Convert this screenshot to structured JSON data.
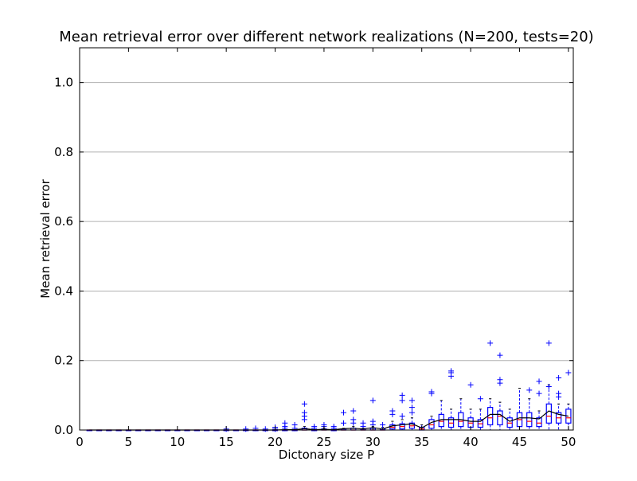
{
  "chart_data": {
    "type": "box",
    "title": "Mean retrieval error over different network realizations (N=200, tests=20)",
    "xlabel": "Dictonary size P",
    "ylabel": "Mean retrieval error",
    "xlim": [
      0,
      50.5
    ],
    "ylim": [
      0,
      1.1
    ],
    "xticks": [
      0,
      5,
      10,
      15,
      20,
      25,
      30,
      35,
      40,
      45,
      50
    ],
    "yticks": [
      0.0,
      0.2,
      0.4,
      0.6,
      0.8,
      1.0
    ],
    "xtick_labels": [
      "0",
      "5",
      "10",
      "15",
      "20",
      "25",
      "30",
      "35",
      "40",
      "45",
      "50"
    ],
    "ytick_labels": [
      "0.0",
      "0.2",
      "0.4",
      "0.6",
      "0.8",
      "1.0"
    ],
    "grid": "horizontal",
    "colors": {
      "box": "#0000ff",
      "median": "#ff0000",
      "mean_line": "#000000",
      "outlier": "#0000ff",
      "grid": "#b0b0b0"
    },
    "boxes": [
      {
        "x": 1,
        "q1": 0,
        "median": 0,
        "q3": 0,
        "whisker_low": 0,
        "whisker_high": 0,
        "outliers": []
      },
      {
        "x": 2,
        "q1": 0,
        "median": 0,
        "q3": 0,
        "whisker_low": 0,
        "whisker_high": 0,
        "outliers": []
      },
      {
        "x": 3,
        "q1": 0,
        "median": 0,
        "q3": 0,
        "whisker_low": 0,
        "whisker_high": 0,
        "outliers": []
      },
      {
        "x": 4,
        "q1": 0,
        "median": 0,
        "q3": 0,
        "whisker_low": 0,
        "whisker_high": 0,
        "outliers": []
      },
      {
        "x": 5,
        "q1": 0,
        "median": 0,
        "q3": 0,
        "whisker_low": 0,
        "whisker_high": 0,
        "outliers": []
      },
      {
        "x": 6,
        "q1": 0,
        "median": 0,
        "q3": 0,
        "whisker_low": 0,
        "whisker_high": 0,
        "outliers": []
      },
      {
        "x": 7,
        "q1": 0,
        "median": 0,
        "q3": 0,
        "whisker_low": 0,
        "whisker_high": 0,
        "outliers": []
      },
      {
        "x": 8,
        "q1": 0,
        "median": 0,
        "q3": 0,
        "whisker_low": 0,
        "whisker_high": 0,
        "outliers": []
      },
      {
        "x": 9,
        "q1": 0,
        "median": 0,
        "q3": 0,
        "whisker_low": 0,
        "whisker_high": 0,
        "outliers": []
      },
      {
        "x": 10,
        "q1": 0,
        "median": 0,
        "q3": 0,
        "whisker_low": 0,
        "whisker_high": 0,
        "outliers": []
      },
      {
        "x": 11,
        "q1": 0,
        "median": 0,
        "q3": 0,
        "whisker_low": 0,
        "whisker_high": 0,
        "outliers": []
      },
      {
        "x": 12,
        "q1": 0,
        "median": 0,
        "q3": 0,
        "whisker_low": 0,
        "whisker_high": 0,
        "outliers": []
      },
      {
        "x": 13,
        "q1": 0,
        "median": 0,
        "q3": 0,
        "whisker_low": 0,
        "whisker_high": 0,
        "outliers": []
      },
      {
        "x": 14,
        "q1": 0,
        "median": 0,
        "q3": 0,
        "whisker_low": 0,
        "whisker_high": 0,
        "outliers": []
      },
      {
        "x": 15,
        "q1": 0,
        "median": 0,
        "q3": 0,
        "whisker_low": 0,
        "whisker_high": 0,
        "outliers": [
          0.003
        ]
      },
      {
        "x": 16,
        "q1": 0,
        "median": 0,
        "q3": 0,
        "whisker_low": 0,
        "whisker_high": 0,
        "outliers": []
      },
      {
        "x": 17,
        "q1": 0,
        "median": 0,
        "q3": 0,
        "whisker_low": 0,
        "whisker_high": 0,
        "outliers": [
          0.003
        ]
      },
      {
        "x": 18,
        "q1": 0,
        "median": 0,
        "q3": 0,
        "whisker_low": 0,
        "whisker_high": 0,
        "outliers": [
          0.005
        ]
      },
      {
        "x": 19,
        "q1": 0,
        "median": 0,
        "q3": 0,
        "whisker_low": 0,
        "whisker_high": 0,
        "outliers": [
          0.003
        ]
      },
      {
        "x": 20,
        "q1": 0,
        "median": 0,
        "q3": 0,
        "whisker_low": 0,
        "whisker_high": 0,
        "outliers": [
          0.003,
          0.008
        ]
      },
      {
        "x": 21,
        "q1": 0,
        "median": 0,
        "q3": 0,
        "whisker_low": 0,
        "whisker_high": 0,
        "outliers": [
          0.005,
          0.01,
          0.02
        ]
      },
      {
        "x": 22,
        "q1": 0,
        "median": 0,
        "q3": 0,
        "whisker_low": 0,
        "whisker_high": 0,
        "outliers": [
          0.005,
          0.015
        ]
      },
      {
        "x": 23,
        "q1": 0,
        "median": 0,
        "q3": 0.005,
        "whisker_low": 0,
        "whisker_high": 0.01,
        "outliers": [
          0.03,
          0.04,
          0.05,
          0.075
        ]
      },
      {
        "x": 24,
        "q1": 0,
        "median": 0,
        "q3": 0,
        "whisker_low": 0,
        "whisker_high": 0,
        "outliers": [
          0.005,
          0.01
        ]
      },
      {
        "x": 25,
        "q1": 0,
        "median": 0,
        "q3": 0.003,
        "whisker_low": 0,
        "whisker_high": 0.005,
        "outliers": [
          0.01,
          0.015
        ]
      },
      {
        "x": 26,
        "q1": 0,
        "median": 0,
        "q3": 0,
        "whisker_low": 0,
        "whisker_high": 0,
        "outliers": [
          0.005,
          0.01
        ]
      },
      {
        "x": 27,
        "q1": 0,
        "median": 0,
        "q3": 0.003,
        "whisker_low": 0,
        "whisker_high": 0.005,
        "outliers": [
          0.02,
          0.05
        ]
      },
      {
        "x": 28,
        "q1": 0,
        "median": 0,
        "q3": 0.005,
        "whisker_low": 0,
        "whisker_high": 0.01,
        "outliers": [
          0.02,
          0.03,
          0.055
        ]
      },
      {
        "x": 29,
        "q1": 0,
        "median": 0,
        "q3": 0.003,
        "whisker_low": 0,
        "whisker_high": 0.005,
        "outliers": [
          0.01,
          0.02
        ]
      },
      {
        "x": 30,
        "q1": 0,
        "median": 0,
        "q3": 0.005,
        "whisker_low": 0,
        "whisker_high": 0.01,
        "outliers": [
          0.015,
          0.025,
          0.085
        ]
      },
      {
        "x": 31,
        "q1": 0,
        "median": 0,
        "q3": 0.003,
        "whisker_low": 0,
        "whisker_high": 0.008,
        "outliers": [
          0.015
        ]
      },
      {
        "x": 32,
        "q1": 0.003,
        "median": 0.008,
        "q3": 0.015,
        "whisker_low": 0,
        "whisker_high": 0.025,
        "outliers": [
          0.045,
          0.055
        ]
      },
      {
        "x": 33,
        "q1": 0.003,
        "median": 0.01,
        "q3": 0.018,
        "whisker_low": 0,
        "whisker_high": 0.03,
        "outliers": [
          0.04,
          0.085,
          0.1
        ]
      },
      {
        "x": 34,
        "q1": 0.005,
        "median": 0.012,
        "q3": 0.02,
        "whisker_low": 0,
        "whisker_high": 0.035,
        "outliers": [
          0.05,
          0.065,
          0.085
        ]
      },
      {
        "x": 35,
        "q1": 0,
        "median": 0.003,
        "q3": 0.008,
        "whisker_low": 0,
        "whisker_high": 0.015,
        "outliers": []
      },
      {
        "x": 36,
        "q1": 0.005,
        "median": 0.015,
        "q3": 0.03,
        "whisker_low": 0,
        "whisker_high": 0.04,
        "outliers": [
          0.105,
          0.11
        ]
      },
      {
        "x": 37,
        "q1": 0.01,
        "median": 0.025,
        "q3": 0.045,
        "whisker_low": 0,
        "whisker_high": 0.085,
        "outliers": []
      },
      {
        "x": 38,
        "q1": 0.008,
        "median": 0.02,
        "q3": 0.035,
        "whisker_low": 0,
        "whisker_high": 0.06,
        "outliers": [
          0.155,
          0.165,
          0.17
        ]
      },
      {
        "x": 39,
        "q1": 0.01,
        "median": 0.025,
        "q3": 0.05,
        "whisker_low": 0,
        "whisker_high": 0.09,
        "outliers": []
      },
      {
        "x": 40,
        "q1": 0.008,
        "median": 0.02,
        "q3": 0.035,
        "whisker_low": 0,
        "whisker_high": 0.06,
        "outliers": [
          0.13
        ]
      },
      {
        "x": 41,
        "q1": 0.008,
        "median": 0.018,
        "q3": 0.03,
        "whisker_low": 0,
        "whisker_high": 0.06,
        "outliers": [
          0.09
        ]
      },
      {
        "x": 42,
        "q1": 0.015,
        "median": 0.035,
        "q3": 0.065,
        "whisker_low": 0,
        "whisker_high": 0.09,
        "outliers": [
          0.25
        ]
      },
      {
        "x": 43,
        "q1": 0.015,
        "median": 0.04,
        "q3": 0.055,
        "whisker_low": 0,
        "whisker_high": 0.08,
        "outliers": [
          0.135,
          0.145,
          0.215
        ]
      },
      {
        "x": 44,
        "q1": 0.008,
        "median": 0.02,
        "q3": 0.035,
        "whisker_low": 0,
        "whisker_high": 0.06,
        "outliers": []
      },
      {
        "x": 45,
        "q1": 0.01,
        "median": 0.03,
        "q3": 0.05,
        "whisker_low": 0,
        "whisker_high": 0.12,
        "outliers": []
      },
      {
        "x": 46,
        "q1": 0.01,
        "median": 0.025,
        "q3": 0.05,
        "whisker_low": 0,
        "whisker_high": 0.09,
        "outliers": [
          0.115
        ]
      },
      {
        "x": 47,
        "q1": 0.01,
        "median": 0.02,
        "q3": 0.035,
        "whisker_low": 0,
        "whisker_high": 0.055,
        "outliers": [
          0.105,
          0.14
        ]
      },
      {
        "x": 48,
        "q1": 0.02,
        "median": 0.04,
        "q3": 0.075,
        "whisker_low": 0,
        "whisker_high": 0.13,
        "outliers": [
          0.125,
          0.25
        ]
      },
      {
        "x": 49,
        "q1": 0.02,
        "median": 0.035,
        "q3": 0.05,
        "whisker_low": 0,
        "whisker_high": 0.075,
        "outliers": [
          0.095,
          0.105,
          0.15
        ]
      },
      {
        "x": 50,
        "q1": 0.02,
        "median": 0.035,
        "q3": 0.06,
        "whisker_low": 0,
        "whisker_high": 0.075,
        "outliers": [
          0.165
        ]
      }
    ],
    "mean_line": {
      "x": [
        1,
        2,
        3,
        4,
        5,
        6,
        7,
        8,
        9,
        10,
        11,
        12,
        13,
        14,
        15,
        16,
        17,
        18,
        19,
        20,
        21,
        22,
        23,
        24,
        25,
        26,
        27,
        28,
        29,
        30,
        31,
        32,
        33,
        34,
        35,
        36,
        37,
        38,
        39,
        40,
        41,
        42,
        43,
        44,
        45,
        46,
        47,
        48,
        49,
        50
      ],
      "y": [
        0,
        0,
        0,
        0,
        0,
        0,
        0,
        0,
        0,
        0,
        0,
        0,
        0,
        0,
        0,
        0,
        0,
        0,
        0,
        0,
        0.001,
        0.001,
        0.004,
        0.001,
        0.002,
        0.001,
        0.004,
        0.005,
        0.003,
        0.007,
        0.003,
        0.012,
        0.015,
        0.018,
        0.006,
        0.022,
        0.03,
        0.03,
        0.03,
        0.025,
        0.025,
        0.045,
        0.045,
        0.025,
        0.035,
        0.035,
        0.032,
        0.055,
        0.045,
        0.04
      ]
    }
  }
}
